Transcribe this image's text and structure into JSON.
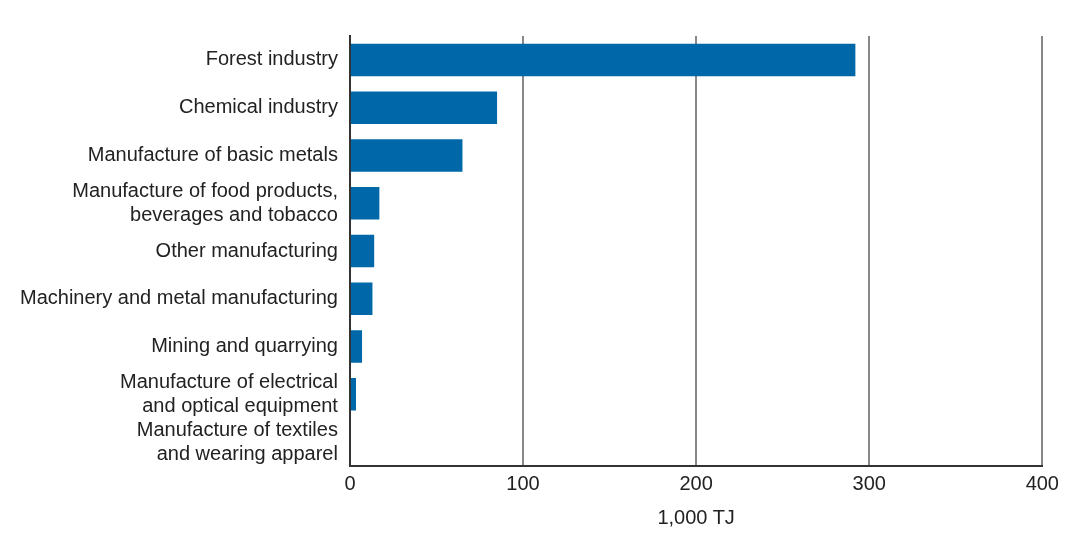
{
  "chart_data": {
    "type": "bar",
    "orientation": "horizontal",
    "xlabel": "1,000 TJ",
    "categories": [
      "Forest industry",
      "Chemical industry",
      "Manufacture of basic metals",
      "Manufacture of food products,\nbeverages and tobacco",
      "Other manufacturing",
      "Machinery and metal manufacturing",
      "Mining and quarrying",
      "Manufacture of electrical\nand optical equipment",
      "Manufacture of textiles\nand wearing apparel"
    ],
    "values": [
      292,
      85,
      65,
      17,
      14,
      13,
      7,
      3.5,
      0
    ],
    "color": "#0068a8",
    "xlim": [
      0,
      400
    ],
    "xticks": [
      0,
      100,
      200,
      300,
      400
    ],
    "grid": "x",
    "legend": false
  }
}
